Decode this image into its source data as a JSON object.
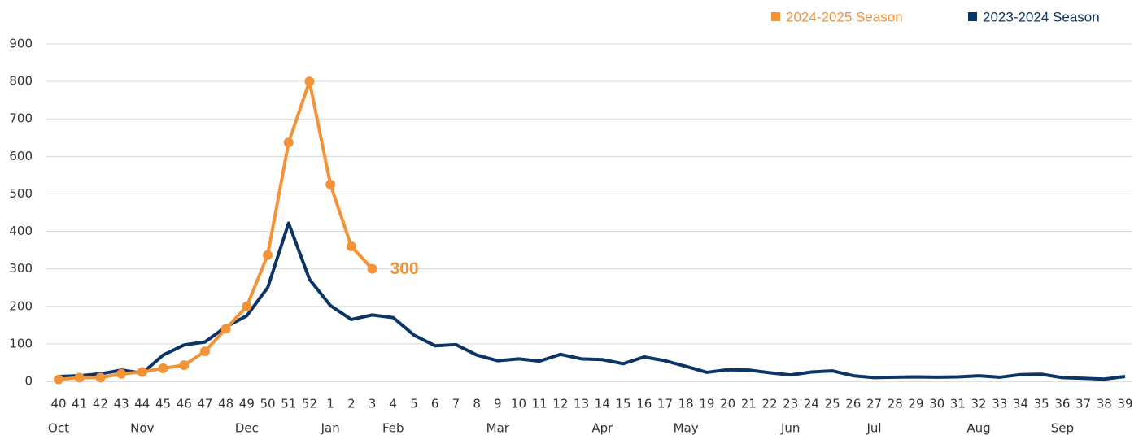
{
  "chart_data": {
    "type": "line",
    "categories": [
      "40",
      "41",
      "42",
      "43",
      "44",
      "45",
      "46",
      "47",
      "48",
      "49",
      "50",
      "51",
      "52",
      "1",
      "2",
      "3",
      "4",
      "5",
      "6",
      "7",
      "8",
      "9",
      "10",
      "11",
      "12",
      "13",
      "14",
      "15",
      "16",
      "17",
      "18",
      "19",
      "20",
      "21",
      "22",
      "23",
      "24",
      "25",
      "26",
      "27",
      "28",
      "29",
      "30",
      "31",
      "32",
      "33",
      "34",
      "35",
      "36",
      "37",
      "38",
      "39"
    ],
    "months": [
      "Oct",
      null,
      null,
      null,
      "Nov",
      null,
      null,
      null,
      null,
      "Dec",
      null,
      null,
      null,
      "Jan",
      null,
      null,
      "Feb",
      null,
      null,
      null,
      null,
      "Mar",
      null,
      null,
      null,
      null,
      "Apr",
      null,
      null,
      null,
      "May",
      null,
      null,
      null,
      null,
      "Jun",
      null,
      null,
      null,
      "Jul",
      null,
      null,
      null,
      null,
      "Aug",
      null,
      null,
      null,
      "Sep",
      null,
      null,
      null
    ],
    "series": [
      {
        "name": "2024-2025 Season",
        "color": "#f39237",
        "markers": true,
        "values": [
          5,
          10,
          10,
          20,
          25,
          35,
          43,
          80,
          140,
          200,
          337,
          637,
          800,
          525,
          360,
          300,
          null,
          null,
          null,
          null,
          null,
          null,
          null,
          null,
          null,
          null,
          null,
          null,
          null,
          null,
          null,
          null,
          null,
          null,
          null,
          null,
          null,
          null,
          null,
          null,
          null,
          null,
          null,
          null,
          null,
          null,
          null,
          null,
          null,
          null,
          null,
          null
        ]
      },
      {
        "name": "2023-2024 Season",
        "color": "#0b3566",
        "markers": false,
        "values": [
          13,
          15,
          20,
          30,
          22,
          70,
          97,
          105,
          145,
          175,
          250,
          422,
          272,
          202,
          165,
          177,
          170,
          123,
          95,
          98,
          70,
          55,
          60,
          54,
          72,
          60,
          58,
          47,
          65,
          55,
          40,
          24,
          31,
          30,
          23,
          17,
          25,
          28,
          15,
          10,
          11,
          12,
          11,
          12,
          15,
          11,
          18,
          19,
          10,
          8,
          6,
          13
        ]
      }
    ],
    "ylim": [
      0,
      900
    ],
    "yticks": [
      0,
      100,
      200,
      300,
      400,
      500,
      600,
      700,
      800,
      900
    ],
    "grid": true,
    "legend": "top-right"
  }
}
